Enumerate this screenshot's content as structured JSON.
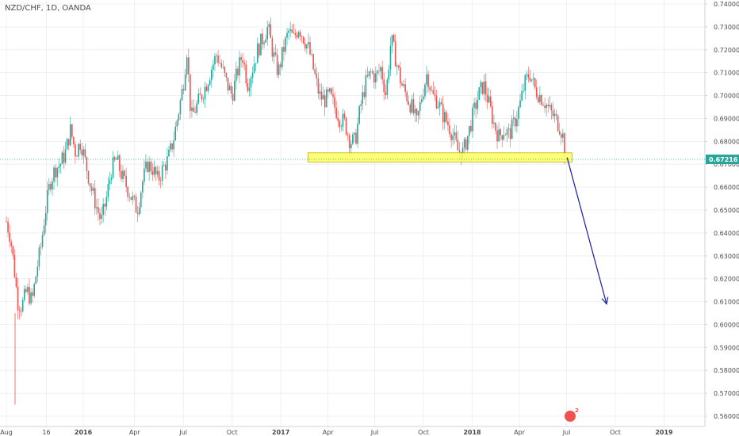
{
  "header": {
    "title": "NZD/CHF, 1D, OANDA"
  },
  "chart_data": {
    "type": "candlestick",
    "title": "NZD/CHF, 1D, OANDA",
    "symbol": "NZD/CHF",
    "interval": "1D",
    "source": "OANDA",
    "ylim": [
      0.555,
      0.742
    ],
    "y_ticks": [
      "0.74000",
      "0.73000",
      "0.72000",
      "0.71000",
      "0.70000",
      "0.69000",
      "0.68000",
      "0.67000",
      "0.66000",
      "0.65000",
      "0.64000",
      "0.63000",
      "0.62000",
      "0.61000",
      "0.60000",
      "0.59000",
      "0.58000",
      "0.57000",
      "0.56000"
    ],
    "x_ticks": [
      {
        "label": "Aug",
        "t": 0.0,
        "bold": false
      },
      {
        "label": "16",
        "t": 0.078,
        "bold": false
      },
      {
        "label": "2016",
        "t": 0.15,
        "bold": true
      },
      {
        "label": "Apr",
        "t": 0.25,
        "bold": false
      },
      {
        "label": "Jul",
        "t": 0.345,
        "bold": false
      },
      {
        "label": "Oct",
        "t": 0.44,
        "bold": false
      },
      {
        "label": "2017",
        "t": 0.535,
        "bold": true
      },
      {
        "label": "Apr",
        "t": 0.627,
        "bold": false
      },
      {
        "label": "Jul",
        "t": 0.718,
        "bold": false
      },
      {
        "label": "Oct",
        "t": 0.813,
        "bold": false
      },
      {
        "label": "2018",
        "t": 0.908,
        "bold": true
      },
      {
        "label": "Apr",
        "t": 1.0,
        "bold": false
      },
      {
        "label": "Jul",
        "t": 1.092,
        "bold": false
      },
      {
        "label": "Oct",
        "t": 1.187,
        "bold": false
      },
      {
        "label": "2019",
        "t": 1.282,
        "bold": true
      }
    ],
    "series": [
      {
        "points": [
          [
            0.0,
            0.645
          ],
          [
            0.008,
            0.638
          ],
          [
            0.015,
            0.625
          ],
          [
            0.022,
            0.61
          ],
          [
            0.03,
            0.608
          ],
          [
            0.04,
            0.615
          ],
          [
            0.05,
            0.61
          ],
          [
            0.06,
            0.625
          ],
          [
            0.068,
            0.635
          ],
          [
            0.075,
            0.648
          ],
          [
            0.085,
            0.662
          ],
          [
            0.095,
            0.668
          ],
          [
            0.105,
            0.67
          ],
          [
            0.115,
            0.675
          ],
          [
            0.125,
            0.685
          ],
          [
            0.135,
            0.675
          ],
          [
            0.145,
            0.68
          ],
          [
            0.155,
            0.67
          ],
          [
            0.165,
            0.66
          ],
          [
            0.175,
            0.652
          ],
          [
            0.185,
            0.645
          ],
          [
            0.195,
            0.655
          ],
          [
            0.205,
            0.668
          ],
          [
            0.215,
            0.672
          ],
          [
            0.225,
            0.665
          ],
          [
            0.235,
            0.66
          ],
          [
            0.245,
            0.655
          ],
          [
            0.255,
            0.65
          ],
          [
            0.265,
            0.662
          ],
          [
            0.275,
            0.67
          ],
          [
            0.285,
            0.668
          ],
          [
            0.295,
            0.663
          ],
          [
            0.305,
            0.668
          ],
          [
            0.315,
            0.672
          ],
          [
            0.325,
            0.68
          ],
          [
            0.335,
            0.692
          ],
          [
            0.345,
            0.705
          ],
          [
            0.352,
            0.72
          ],
          [
            0.36,
            0.69
          ],
          [
            0.37,
            0.695
          ],
          [
            0.38,
            0.7
          ],
          [
            0.39,
            0.705
          ],
          [
            0.4,
            0.712
          ],
          [
            0.41,
            0.718
          ],
          [
            0.42,
            0.712
          ],
          [
            0.43,
            0.705
          ],
          [
            0.44,
            0.7
          ],
          [
            0.45,
            0.71
          ],
          [
            0.46,
            0.718
          ],
          [
            0.47,
            0.705
          ],
          [
            0.48,
            0.712
          ],
          [
            0.49,
            0.72
          ],
          [
            0.5,
            0.725
          ],
          [
            0.51,
            0.73
          ],
          [
            0.52,
            0.718
          ],
          [
            0.53,
            0.71
          ],
          [
            0.54,
            0.72
          ],
          [
            0.55,
            0.728
          ],
          [
            0.56,
            0.725
          ],
          [
            0.57,
            0.73
          ],
          [
            0.58,
            0.725
          ],
          [
            0.59,
            0.72
          ],
          [
            0.6,
            0.71
          ],
          [
            0.61,
            0.7
          ],
          [
            0.62,
            0.698
          ],
          [
            0.63,
            0.7
          ],
          [
            0.64,
            0.695
          ],
          [
            0.65,
            0.69
          ],
          [
            0.66,
            0.688
          ],
          [
            0.67,
            0.68
          ],
          [
            0.68,
            0.68
          ],
          [
            0.69,
            0.695
          ],
          [
            0.7,
            0.705
          ],
          [
            0.71,
            0.71
          ],
          [
            0.72,
            0.708
          ],
          [
            0.73,
            0.712
          ],
          [
            0.74,
            0.7
          ],
          [
            0.75,
            0.725
          ],
          [
            0.76,
            0.715
          ],
          [
            0.77,
            0.705
          ],
          [
            0.78,
            0.7
          ],
          [
            0.79,
            0.695
          ],
          [
            0.8,
            0.688
          ],
          [
            0.81,
            0.7
          ],
          [
            0.82,
            0.71
          ],
          [
            0.83,
            0.7
          ],
          [
            0.84,
            0.698
          ],
          [
            0.85,
            0.692
          ],
          [
            0.86,
            0.688
          ],
          [
            0.87,
            0.683
          ],
          [
            0.88,
            0.676
          ],
          [
            0.89,
            0.675
          ],
          [
            0.9,
            0.683
          ],
          [
            0.91,
            0.692
          ],
          [
            0.92,
            0.7
          ],
          [
            0.93,
            0.705
          ],
          [
            0.94,
            0.697
          ],
          [
            0.95,
            0.688
          ],
          [
            0.96,
            0.682
          ],
          [
            0.97,
            0.685
          ],
          [
            0.98,
            0.683
          ],
          [
            0.99,
            0.688
          ],
          [
            1.0,
            0.695
          ],
          [
            1.01,
            0.705
          ],
          [
            1.02,
            0.71
          ],
          [
            1.03,
            0.703
          ],
          [
            1.04,
            0.7
          ],
          [
            1.05,
            0.697
          ],
          [
            1.06,
            0.693
          ],
          [
            1.07,
            0.69
          ],
          [
            1.08,
            0.686
          ],
          [
            1.085,
            0.682
          ],
          [
            1.09,
            0.672
          ]
        ]
      }
    ],
    "annotations": {
      "support_zone": {
        "t_start": 0.588,
        "t_end": 1.103,
        "y_low": 0.671,
        "y_high": 0.675,
        "color": "#ffff66"
      },
      "horizontal_line": {
        "y": 0.67216,
        "color": "#26a69a"
      },
      "arrow": {
        "t_start": 1.093,
        "y_start": 0.673,
        "t_end": 1.17,
        "y_end": 0.609,
        "color": "#1a1aa8"
      }
    },
    "last_price": {
      "value": 0.67216,
      "label": "0.67216",
      "color": "#26a69a"
    },
    "colors": {
      "up": "#26a69a",
      "down": "#ef5350",
      "grid": "#eef0f3",
      "axis_text": "#4a4a4a"
    },
    "grid": true
  },
  "logo": {
    "label": "2",
    "color": "#ef5350"
  }
}
